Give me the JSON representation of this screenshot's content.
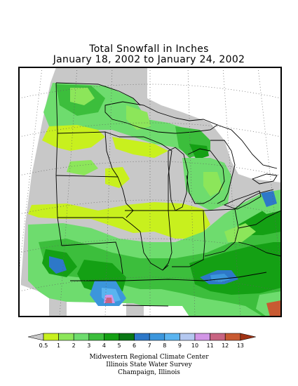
{
  "title": {
    "line1": "Total Snowfall in Inches",
    "line2": "January 18, 2002 to January 24, 2002"
  },
  "legend": {
    "bins": [
      {
        "label": "0.5",
        "color": "#c8c8c8"
      },
      {
        "label": "1",
        "color": "#c8f01e"
      },
      {
        "label": "2",
        "color": "#8ce65a"
      },
      {
        "label": "3",
        "color": "#6edc6e"
      },
      {
        "label": "4",
        "color": "#3cbe3c"
      },
      {
        "label": "5",
        "color": "#14a014"
      },
      {
        "label": "6",
        "color": "#0a7814"
      },
      {
        "label": "7",
        "color": "#2d78c8"
      },
      {
        "label": "8",
        "color": "#3c96dc"
      },
      {
        "label": "9",
        "color": "#5ab4f0"
      },
      {
        "label": "10",
        "color": "#b4c8f0"
      },
      {
        "label": "11",
        "color": "#d296e6"
      },
      {
        "label": "12",
        "color": "#c86482"
      },
      {
        "label": "13",
        "color": "#c85a32"
      }
    ],
    "end_right_color": "#a03214"
  },
  "footer": {
    "line1": "Midwestern Regional Climate Center",
    "line2": "Illinois State Water Survey",
    "line3": "Champaign, Illinois"
  }
}
